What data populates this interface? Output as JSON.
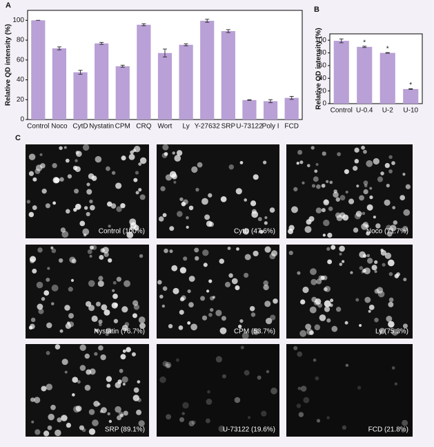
{
  "panel_labels": [
    "A",
    "B",
    "C"
  ],
  "chart_data": [
    {
      "type": "bar",
      "ylabel": "Relative QD intensity (%)",
      "categories": [
        "Control",
        "Noco",
        "CytD",
        "Nystatin",
        "CPM",
        "CRQ",
        "Wort",
        "Ly",
        "Y-27632",
        "SRP",
        "U-73122",
        "Poly I",
        "FCD"
      ],
      "values": [
        100,
        71.7,
        47.6,
        76.7,
        53.7,
        95.5,
        67,
        75.3,
        99.5,
        89.1,
        19.6,
        18.5,
        21.8
      ],
      "errors": [
        0,
        1.5,
        2,
        1,
        1,
        1,
        4,
        1,
        1.5,
        1.5,
        0.3,
        1.5,
        1.5
      ],
      "color": "#b9a0d6",
      "ylim": [
        0,
        110
      ],
      "yticks": [
        0,
        20,
        40,
        60,
        80,
        100
      ]
    },
    {
      "type": "bar",
      "ylabel": "Relative QD intensity (%)",
      "categories": [
        "Control",
        "U-0.4",
        "U-2",
        "U-10"
      ],
      "values": [
        99,
        89.5,
        80,
        23
      ],
      "errors": [
        3,
        1,
        0.5,
        0.5
      ],
      "markers": [
        null,
        "*",
        "*",
        "*"
      ],
      "color": "#b9a0d6",
      "ylim": [
        0,
        110
      ],
      "yticks": [
        0,
        20,
        40,
        60,
        80,
        100
      ]
    }
  ],
  "images": [
    "Control (100%)",
    "CytD (47.6%)",
    "Noco (71.7%)",
    "Nystatin (76.7%)",
    "CPM (53.7%)",
    "Ly (75.3%)",
    "SRP (89.1%)",
    "U-73122 (19.6%)",
    "FCD (21.8%)"
  ]
}
